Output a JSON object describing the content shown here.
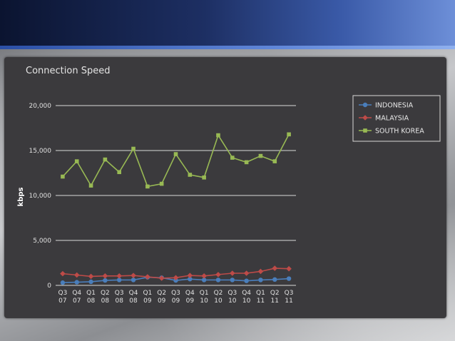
{
  "chart_data": {
    "type": "line",
    "title": "Connection Speed",
    "ylabel": "kbps",
    "xlabel": "",
    "ylim": [
      0,
      20000
    ],
    "yticks": [
      0,
      5000,
      10000,
      15000,
      20000
    ],
    "ytick_labels": [
      "0",
      "5,000",
      "10,000",
      "15,000",
      "20,000"
    ],
    "categories": [
      [
        "Q3",
        "07"
      ],
      [
        "Q4",
        "07"
      ],
      [
        "Q1",
        "08"
      ],
      [
        "Q2",
        "08"
      ],
      [
        "Q3",
        "08"
      ],
      [
        "Q4",
        "08"
      ],
      [
        "Q1",
        "09"
      ],
      [
        "Q2",
        "09"
      ],
      [
        "Q3",
        "09"
      ],
      [
        "Q4",
        "09"
      ],
      [
        "Q1",
        "10"
      ],
      [
        "Q2",
        "10"
      ],
      [
        "Q3",
        "10"
      ],
      [
        "Q4",
        "10"
      ],
      [
        "Q1",
        "11"
      ],
      [
        "Q2",
        "11"
      ],
      [
        "Q3",
        "11"
      ]
    ],
    "grid": true,
    "legend_position": "right",
    "series": [
      {
        "name": "INDONESIA",
        "color": "#4a7ebb",
        "marker": "circle",
        "values": [
          300,
          350,
          400,
          550,
          600,
          600,
          900,
          850,
          550,
          700,
          600,
          600,
          600,
          500,
          600,
          650,
          750
        ]
      },
      {
        "name": "MALAYSIA",
        "color": "#be4b48",
        "marker": "diamond",
        "values": [
          1300,
          1150,
          1000,
          1050,
          1050,
          1100,
          950,
          800,
          850,
          1100,
          1050,
          1200,
          1350,
          1350,
          1550,
          1900,
          1850
        ]
      },
      {
        "name": "SOUTH KOREA",
        "color": "#98b954",
        "marker": "square",
        "values": [
          12100,
          13800,
          11100,
          14000,
          12600,
          15200,
          11000,
          11300,
          14600,
          12300,
          12000,
          16700,
          14200,
          13700,
          14400,
          13800,
          16800
        ]
      }
    ]
  }
}
